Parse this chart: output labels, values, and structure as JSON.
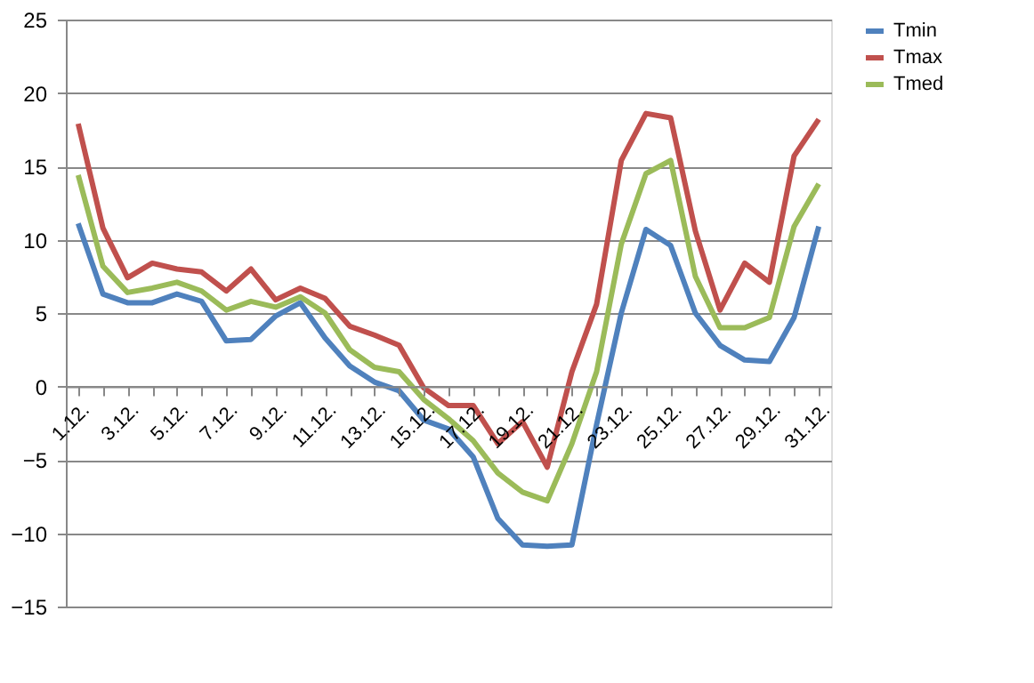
{
  "chart_data": {
    "type": "line",
    "categories": [
      "1.12.",
      null,
      "3.12.",
      null,
      "5.12.",
      null,
      "7.12.",
      null,
      "9.12.",
      null,
      "11.12.",
      null,
      "13.12.",
      null,
      "15.12.",
      null,
      "17.12.",
      null,
      "19.12.",
      null,
      "21.12.",
      null,
      "23.12.",
      null,
      "25.12.",
      null,
      "27.12.",
      null,
      "29.12.",
      null,
      "31.12."
    ],
    "series": [
      {
        "name": "Tmin",
        "color": "#4f81bd",
        "values": [
          11.1,
          6.3,
          5.7,
          5.7,
          6.3,
          5.8,
          3.1,
          3.2,
          4.8,
          5.7,
          3.3,
          1.4,
          0.3,
          -0.3,
          -2.3,
          -2.9,
          -4.8,
          -9.0,
          -10.8,
          -10.9,
          -10.8,
          -2.6,
          5.0,
          10.7,
          9.6,
          5.0,
          2.8,
          1.8,
          1.7,
          4.7,
          10.9
        ]
      },
      {
        "name": "Tmax",
        "color": "#c0504d",
        "values": [
          17.9,
          10.8,
          7.4,
          8.4,
          8.0,
          7.8,
          6.5,
          8.0,
          5.9,
          6.7,
          6.0,
          4.1,
          3.5,
          2.8,
          -0.1,
          -1.3,
          -1.3,
          -3.9,
          -2.4,
          -5.5,
          1.0,
          5.6,
          15.4,
          18.6,
          18.3,
          10.6,
          5.2,
          8.4,
          7.1,
          15.7,
          18.2
        ]
      },
      {
        "name": "Tmed",
        "color": "#9bbb59",
        "values": [
          14.4,
          8.2,
          6.4,
          6.7,
          7.1,
          6.5,
          5.2,
          5.8,
          5.4,
          6.1,
          5.0,
          2.5,
          1.3,
          1.0,
          -0.9,
          -2.2,
          -3.7,
          -5.9,
          -7.2,
          -7.8,
          -3.9,
          1.0,
          9.7,
          14.5,
          15.4,
          7.5,
          4.0,
          4.0,
          4.7,
          10.9,
          13.8
        ]
      }
    ],
    "ylim": [
      -15,
      25
    ],
    "yticks": [
      -15,
      -10,
      -5,
      0,
      5,
      10,
      15,
      20,
      25
    ],
    "grid": "y",
    "legend": "right",
    "marker": "none",
    "line_style": "solid"
  }
}
